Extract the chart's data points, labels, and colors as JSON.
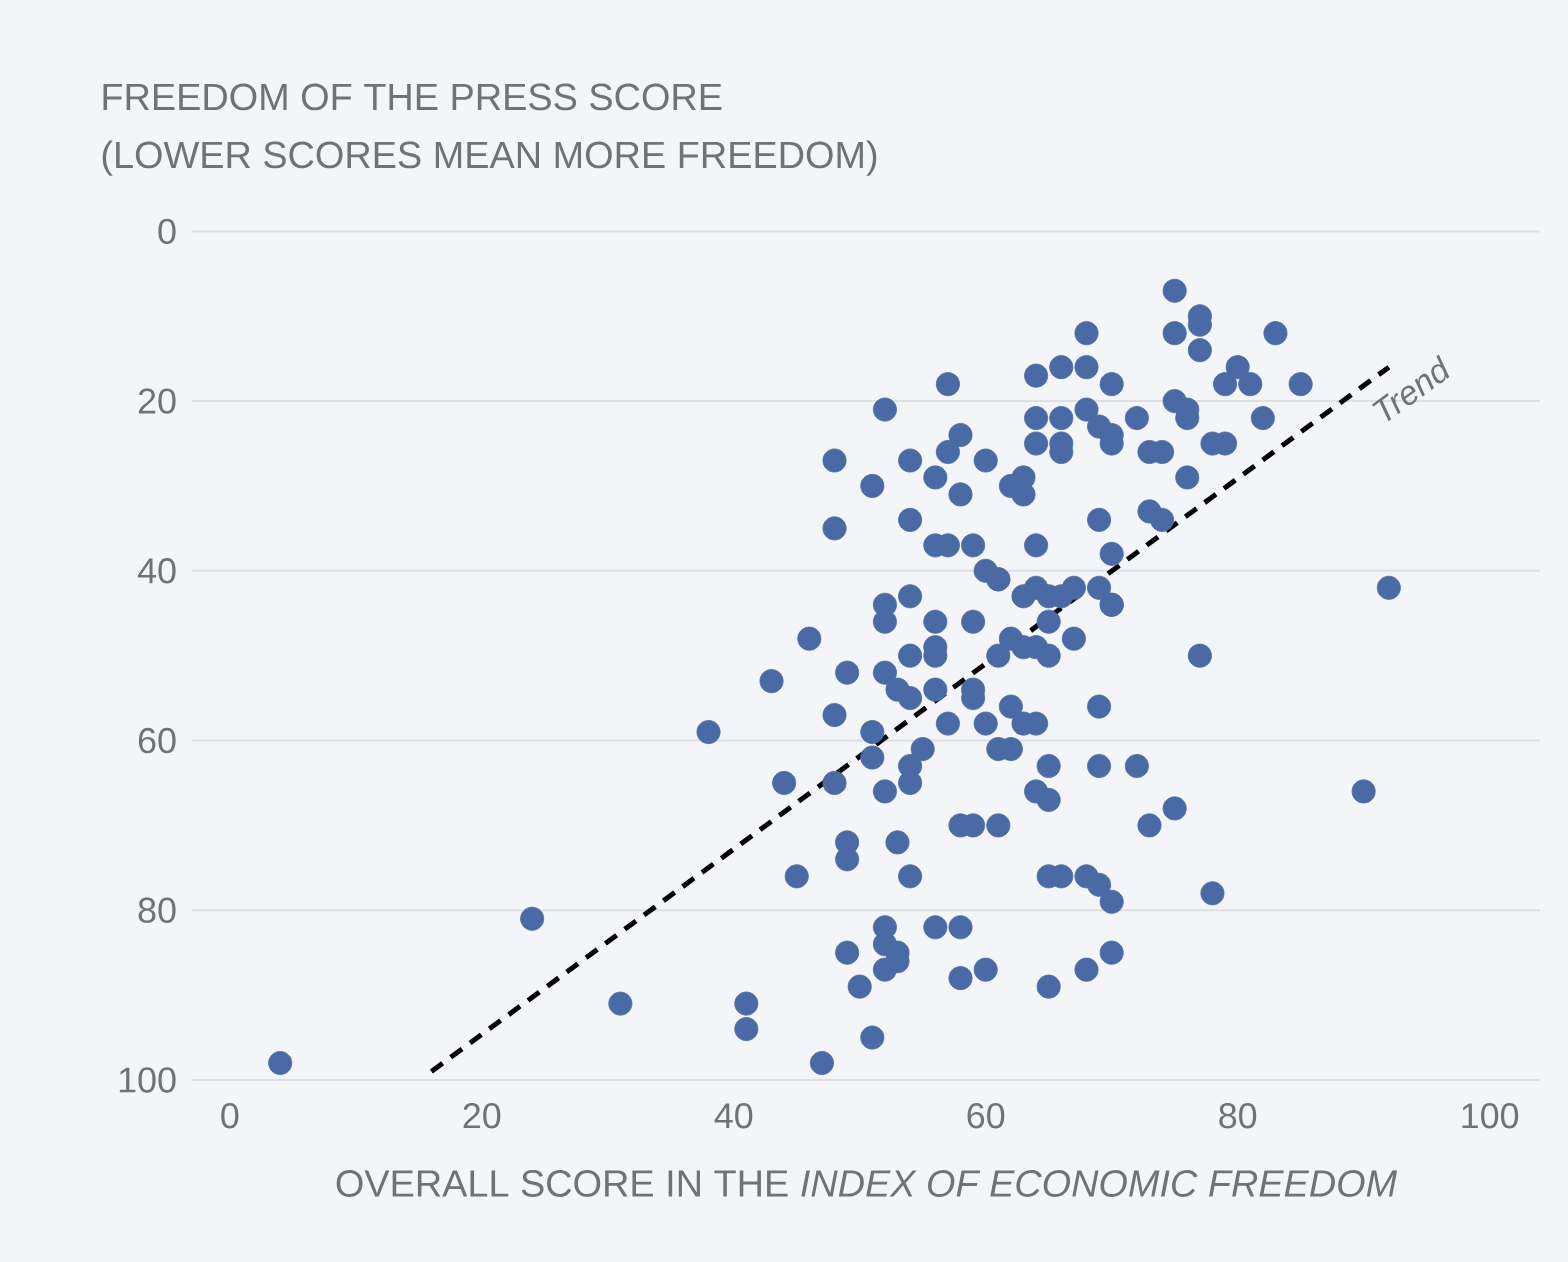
{
  "chart_data": {
    "type": "scatter",
    "title": "FREEDOM OF THE PRESS SCORE",
    "subtitle": "(LOWER SCORES MEAN MORE FREEDOM)",
    "xlabel": "OVERALL SCORE IN THE *INDEX OF ECONOMIC FREEDOM*",
    "xlim": [
      -3,
      104
    ],
    "xticks": [
      0,
      20,
      40,
      60,
      80,
      100
    ],
    "ylim": [
      100,
      0
    ],
    "yticks": [
      0,
      20,
      40,
      60,
      80,
      100
    ],
    "grid": "y",
    "marker": "circle",
    "annotations": [
      "Trend"
    ],
    "series": [
      {
        "color": "#4a6aa5",
        "x": [
          4,
          24,
          31,
          38,
          41,
          41,
          43,
          44,
          45,
          46,
          47,
          48,
          48,
          48,
          48,
          49,
          49,
          49,
          49,
          50,
          51,
          51,
          51,
          51,
          52,
          52,
          52,
          52,
          52,
          52,
          52,
          52,
          53,
          53,
          54,
          54,
          53,
          53,
          54,
          54,
          54,
          54,
          54,
          54,
          55,
          56,
          56,
          56,
          56,
          56,
          56,
          56,
          57,
          57,
          57,
          58,
          57,
          58,
          58,
          58,
          58,
          59,
          59,
          59,
          59,
          59,
          60,
          60,
          60,
          60,
          61,
          61,
          61,
          61,
          61,
          62,
          62,
          62,
          62,
          63,
          63,
          63,
          63,
          63,
          64,
          64,
          64,
          64,
          64,
          64,
          64,
          64,
          65,
          65,
          65,
          65,
          65,
          65,
          65,
          66,
          66,
          66,
          66,
          66,
          66,
          67,
          67,
          68,
          68,
          68,
          68,
          68,
          69,
          69,
          69,
          69,
          69,
          69,
          70,
          70,
          70,
          70,
          70,
          70,
          70,
          70,
          72,
          72,
          73,
          73,
          73,
          74,
          74,
          75,
          75,
          75,
          75,
          76,
          76,
          76,
          77,
          77,
          77,
          77,
          78,
          78,
          79,
          79,
          80,
          81,
          82,
          83,
          85,
          90,
          92
        ],
        "values": [
          98,
          81,
          91,
          59,
          91,
          94,
          53,
          65,
          76,
          48,
          98,
          27,
          35,
          57,
          65,
          72,
          74,
          85,
          52,
          89,
          30,
          59,
          62,
          95,
          82,
          84,
          21,
          44,
          46,
          52,
          66,
          87,
          85,
          54,
          34,
          27,
          86,
          72,
          76,
          55,
          50,
          43,
          63,
          65,
          61,
          29,
          46,
          37,
          50,
          82,
          49,
          54,
          58,
          18,
          26,
          24,
          37,
          31,
          88,
          82,
          70,
          54,
          55,
          70,
          37,
          46,
          87,
          27,
          58,
          40,
          50,
          61,
          70,
          41,
          41,
          30,
          48,
          56,
          61,
          29,
          43,
          49,
          58,
          31,
          37,
          66,
          58,
          17,
          22,
          25,
          42,
          49,
          89,
          76,
          43,
          46,
          50,
          63,
          67,
          76,
          25,
          26,
          22,
          16,
          43,
          48,
          42,
          76,
          12,
          16,
          21,
          87,
          23,
          34,
          42,
          77,
          56,
          63,
          24,
          38,
          44,
          85,
          79,
          18,
          25,
          44,
          22,
          63,
          33,
          26,
          70,
          34,
          26,
          7,
          12,
          20,
          68,
          21,
          29,
          22,
          10,
          50,
          11,
          14,
          25,
          78,
          18,
          25,
          16,
          18,
          22,
          12,
          18,
          66,
          42
        ]
      },
      {
        "type": "line",
        "color": "#000000",
        "line_style": "dashed",
        "marker": "none",
        "x": [
          16,
          92
        ],
        "values": [
          99,
          16
        ]
      }
    ]
  }
}
